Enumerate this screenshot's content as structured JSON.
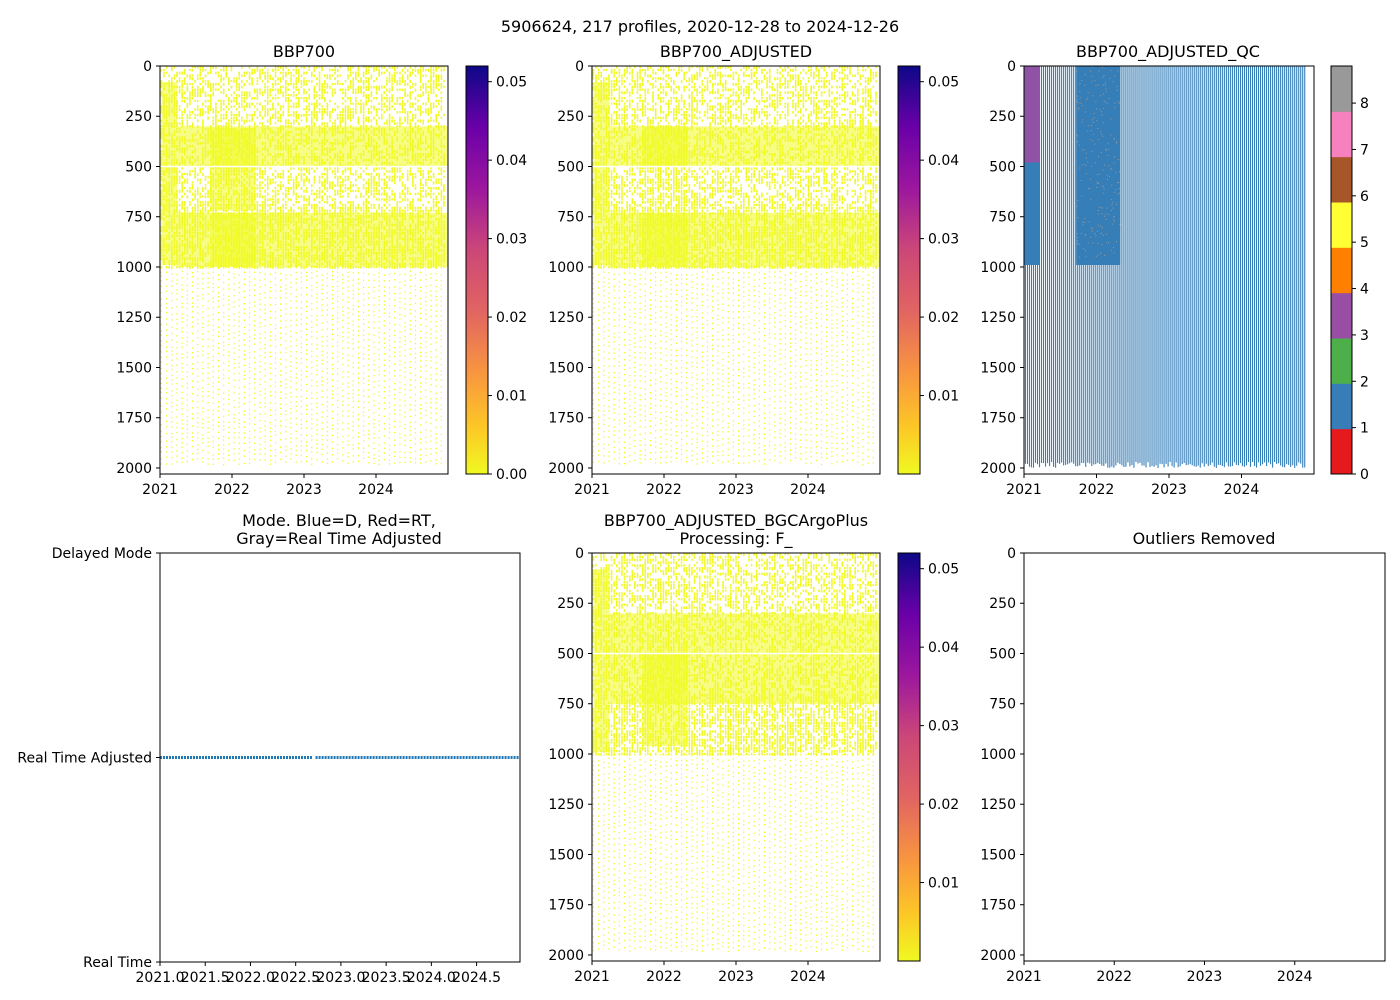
{
  "suptitle": "5906624, 217 profiles, 2020-12-28 to 2024-12-26",
  "colors": {
    "yellow": "#f0f921",
    "blue": "#377eb8",
    "purple": "#984ea3",
    "gray": "#999999",
    "mode_line": "#1f77b4"
  },
  "chart_data": [
    {
      "id": "bbp700",
      "type": "heatmap",
      "title": "BBP700",
      "x_ticks": [
        "2021",
        "2022",
        "2023",
        "2024"
      ],
      "x_range": [
        2021.0,
        2025.0
      ],
      "y_ticks": [
        "0",
        "250",
        "500",
        "750",
        "1000",
        "1250",
        "1500",
        "1750",
        "2000"
      ],
      "y_range": [
        0,
        2030
      ],
      "y_inverted": true,
      "colorbar": {
        "cmap": "plasma_r",
        "range": [
          0.0,
          0.052
        ],
        "ticks": [
          "0.00",
          "0.01",
          "0.02",
          "0.03",
          "0.04",
          "0.05"
        ],
        "tick_values": [
          0.0,
          0.01,
          0.02,
          0.03,
          0.04,
          0.05
        ]
      }
    },
    {
      "id": "bbp700-adjusted",
      "type": "heatmap",
      "title": "BBP700_ADJUSTED",
      "x_ticks": [
        "2021",
        "2022",
        "2023",
        "2024"
      ],
      "x_range": [
        2021.0,
        2025.0
      ],
      "y_ticks": [
        "0",
        "250",
        "500",
        "750",
        "1000",
        "1250",
        "1500",
        "1750",
        "2000"
      ],
      "y_range": [
        0,
        2030
      ],
      "y_inverted": true,
      "colorbar": {
        "cmap": "plasma_r",
        "range": [
          0.0,
          0.052
        ],
        "ticks": [
          "0.01",
          "0.02",
          "0.03",
          "0.04",
          "0.05"
        ],
        "tick_values": [
          0.01,
          0.02,
          0.03,
          0.04,
          0.05
        ]
      }
    },
    {
      "id": "bbp700-adjusted-qc",
      "type": "heatmap",
      "title": "BBP700_ADJUSTED_QC",
      "x_ticks": [
        "2021",
        "2022",
        "2023",
        "2024"
      ],
      "x_range": [
        2021.0,
        2025.0
      ],
      "y_ticks": [
        "0",
        "250",
        "500",
        "750",
        "1000",
        "1250",
        "1500",
        "1750",
        "2000"
      ],
      "y_range": [
        0,
        2030
      ],
      "y_inverted": true,
      "qc_colorbar": {
        "ticks": [
          "0",
          "1",
          "2",
          "3",
          "4",
          "5",
          "6",
          "7",
          "8"
        ],
        "colors": [
          "#e41a1c",
          "#377eb8",
          "#4daf4a",
          "#984ea3",
          "#ff7f00",
          "#ffff33",
          "#a65628",
          "#f781bf",
          "#999999"
        ]
      }
    },
    {
      "id": "mode",
      "type": "scatter",
      "title_lines": [
        "Mode. Blue=D, Red=RT,",
        "Gray=Real Time Adjusted"
      ],
      "x_ticks": [
        "2021.0",
        "2021.5",
        "2022.0",
        "2022.5",
        "2023.0",
        "2023.5",
        "2024.0",
        "2024.5"
      ],
      "x_range": [
        2021.0,
        2024.98
      ],
      "y_ticks": [
        "Delayed Mode",
        "Real Time Adjusted",
        "Real Time"
      ],
      "y_range": [
        0,
        2
      ],
      "series": [
        {
          "name": "Real Time Adjusted",
          "y": 1,
          "x_start": 2021.0,
          "x_end": 2024.98,
          "gap": [
            2022.68,
            2022.72
          ]
        }
      ]
    },
    {
      "id": "bbp700-bgcargoplus",
      "type": "heatmap",
      "title_lines": [
        "BBP700_ADJUSTED_BGCArgoPlus",
        "Processing: F_"
      ],
      "x_ticks": [
        "2021",
        "2022",
        "2023",
        "2024"
      ],
      "x_range": [
        2021.0,
        2025.0
      ],
      "y_ticks": [
        "0",
        "250",
        "500",
        "750",
        "1000",
        "1250",
        "1500",
        "1750",
        "2000"
      ],
      "y_range": [
        0,
        2030
      ],
      "y_inverted": true,
      "colorbar": {
        "cmap": "plasma_r",
        "range": [
          0.0,
          0.052
        ],
        "ticks": [
          "0.01",
          "0.02",
          "0.03",
          "0.04",
          "0.05"
        ],
        "tick_values": [
          0.01,
          0.02,
          0.03,
          0.04,
          0.05
        ]
      }
    },
    {
      "id": "outliers",
      "type": "scatter",
      "title": "Outliers Removed",
      "x_ticks": [
        "2021",
        "2022",
        "2023",
        "2024"
      ],
      "x_range": [
        2021.0,
        2025.0
      ],
      "y_ticks": [
        "0",
        "250",
        "500",
        "750",
        "1000",
        "1250",
        "1500",
        "1750",
        "2000"
      ],
      "y_range": [
        0,
        2030
      ],
      "y_inverted": true,
      "series": []
    }
  ]
}
